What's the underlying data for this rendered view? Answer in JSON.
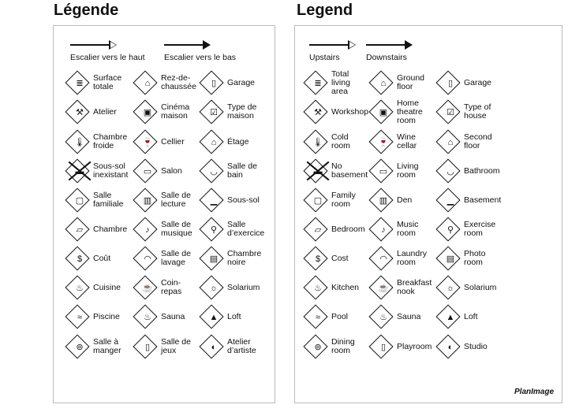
{
  "fr": {
    "title": "Légende",
    "up": "Escalier vers le haut",
    "down": "Escalier vers le bas",
    "items": [
      [
        "Surface\ntotale",
        "stack-icon"
      ],
      [
        "Rez-de-\nchaussée",
        "ground-floor-icon"
      ],
      [
        "Garage",
        "car-icon"
      ],
      [
        "Atelier",
        "hammer-icon"
      ],
      [
        "Cinéma\nmaison",
        "theatre-icon"
      ],
      [
        "Type de\nmaison",
        "checkbox-icon"
      ],
      [
        "Chambre\nfroide",
        "thermometer-icon"
      ],
      [
        "Cellier",
        "wine-icon"
      ],
      [
        "Étage",
        "second-floor-icon"
      ],
      [
        "Sous-sol\ninexistant",
        "no-basement-icon"
      ],
      [
        "Salon",
        "sofa-icon"
      ],
      [
        "Salle de\nbain",
        "sink-icon"
      ],
      [
        "Salle\nfamiliale",
        "tv-icon"
      ],
      [
        "Salle de\nlecture",
        "book-icon"
      ],
      [
        "Sous-sol",
        "basement-icon"
      ],
      [
        "Chambre",
        "bed-icon"
      ],
      [
        "Salle de\nmusique",
        "music-icon"
      ],
      [
        "Salle\nd’exercice",
        "dumbbell-icon"
      ],
      [
        "Coût",
        "dollar-icon"
      ],
      [
        "Salle de\nlavage",
        "laundry-icon"
      ],
      [
        "Chambre\nnoire",
        "camera-icon"
      ],
      [
        "Cuisine",
        "pot-icon"
      ],
      [
        "Coin-\nrepas",
        "cup-icon"
      ],
      [
        "Solarium",
        "sun-icon"
      ],
      [
        "Piscine",
        "pool-icon"
      ],
      [
        "Sauna",
        "sauna-icon"
      ],
      [
        "Loft",
        "loft-icon"
      ],
      [
        "Salle à\nmanger",
        "dining-icon"
      ],
      [
        "Salle de\njeux",
        "game-icon"
      ],
      [
        "Atelier\nd’artiste",
        "palette-icon"
      ]
    ]
  },
  "en": {
    "title": "Legend",
    "up": "Upstairs",
    "down": "Downstairs",
    "items": [
      [
        "Total\nliving\narea",
        "stack-icon"
      ],
      [
        "Ground\nfloor",
        "ground-floor-icon"
      ],
      [
        "Garage",
        "car-icon"
      ],
      [
        "Workshop",
        "hammer-icon"
      ],
      [
        "Home\ntheatre\nroom",
        "theatre-icon"
      ],
      [
        "Type of\nhouse",
        "checkbox-icon"
      ],
      [
        "Cold\nroom",
        "thermometer-icon"
      ],
      [
        "Wine\ncellar",
        "wine-icon"
      ],
      [
        "Second\nfloor",
        "second-floor-icon"
      ],
      [
        "No\nbasement",
        "no-basement-icon"
      ],
      [
        "Living\nroom",
        "sofa-icon"
      ],
      [
        "Bathroom",
        "sink-icon"
      ],
      [
        "Family\nroom",
        "tv-icon"
      ],
      [
        "Den",
        "book-icon"
      ],
      [
        "Basement",
        "basement-icon"
      ],
      [
        "Bedroom",
        "bed-icon"
      ],
      [
        "Music\nroom",
        "music-icon"
      ],
      [
        "Exercise\nroom",
        "dumbbell-icon"
      ],
      [
        "Cost",
        "dollar-icon"
      ],
      [
        "Laundry\nroom",
        "laundry-icon"
      ],
      [
        "Photo\nroom",
        "camera-icon"
      ],
      [
        "Kitchen",
        "pot-icon"
      ],
      [
        "Breakfast\nnook",
        "cup-icon"
      ],
      [
        "Solarium",
        "sun-icon"
      ],
      [
        "Pool",
        "pool-icon"
      ],
      [
        "Sauna",
        "sauna-icon"
      ],
      [
        "Loft",
        "loft-icon"
      ],
      [
        "Dining\nroom",
        "dining-icon"
      ],
      [
        "Playroom",
        "game-icon"
      ],
      [
        "Studio",
        "palette-icon"
      ]
    ]
  },
  "logo": "PlanImage"
}
